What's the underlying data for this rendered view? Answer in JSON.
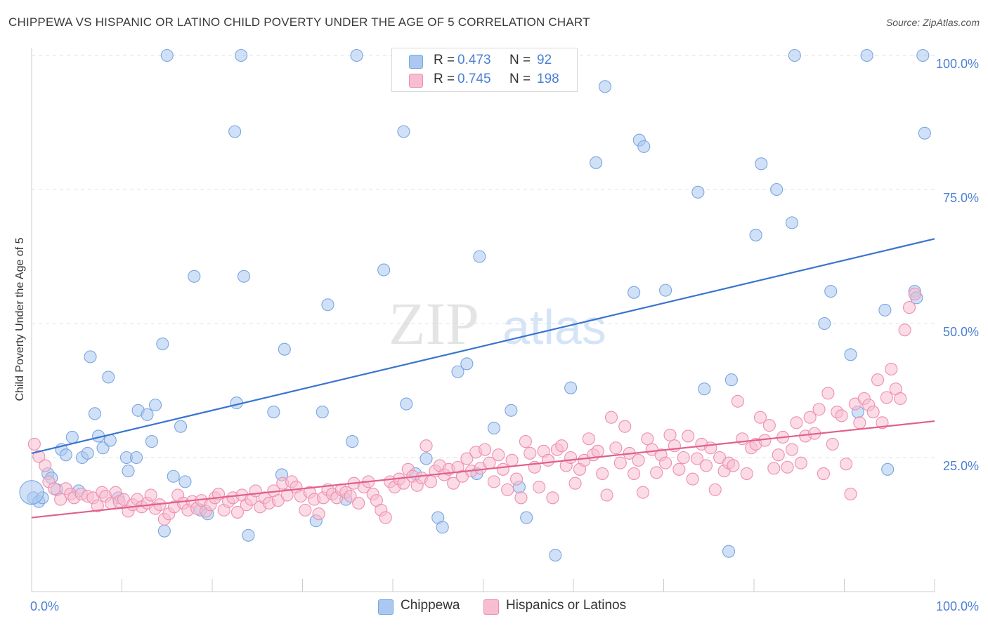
{
  "title": "CHIPPEWA VS HISPANIC OR LATINO CHILD POVERTY UNDER THE AGE OF 5 CORRELATION CHART",
  "source": "Source: ZipAtlas.com",
  "watermark": {
    "part1": "ZIP",
    "part2": "atlas"
  },
  "legend": {
    "rows": [
      {
        "r_label": "R =",
        "r_value": "0.473",
        "n_label": "N =",
        "n_value": "92",
        "color": "#aac8f0",
        "border": "#7aa6e0"
      },
      {
        "r_label": "R =",
        "r_value": "0.745",
        "n_label": "N =",
        "n_value": "198",
        "color": "#f7bdd0",
        "border": "#ee8fb0"
      }
    ]
  },
  "bottom_legend": [
    {
      "label": "Chippewa",
      "color": "#aac8f0",
      "border": "#7aa6e0"
    },
    {
      "label": "Hispanics or Latinos",
      "color": "#f7bdd0",
      "border": "#ee8fb0"
    }
  ],
  "chart_data": {
    "type": "scatter",
    "title": "CHIPPEWA VS HISPANIC OR LATINO CHILD POVERTY UNDER THE AGE OF 5 CORRELATION CHART",
    "xlabel": "",
    "ylabel": "Child Poverty Under the Age of 5",
    "xlim": [
      0,
      100
    ],
    "ylim": [
      0,
      100
    ],
    "x_ticks": [
      {
        "value": 0,
        "label": "0.0%"
      },
      {
        "value": 100,
        "label": "100.0%"
      }
    ],
    "y_ticks": [
      {
        "value": 25,
        "label": "25.0%"
      },
      {
        "value": 50,
        "label": "50.0%"
      },
      {
        "value": 75,
        "label": "75.0%"
      },
      {
        "value": 100,
        "label": "100.0%"
      }
    ],
    "grid": true,
    "series": [
      {
        "name": "Chippewa",
        "color": "#7aa6e0",
        "fill": "#aac8f0",
        "trend": {
          "x": [
            0,
            100
          ],
          "y": [
            25.8,
            65.8
          ],
          "color": "#3a74d0"
        },
        "points": [
          [
            0.2,
            17.5
          ],
          [
            0.8,
            16.8
          ],
          [
            1.2,
            17.5
          ],
          [
            1.8,
            22.0
          ],
          [
            2.2,
            21.2
          ],
          [
            2.8,
            19.0
          ],
          [
            3.3,
            26.5
          ],
          [
            3.8,
            25.5
          ],
          [
            4.5,
            28.8
          ],
          [
            5.2,
            18.8
          ],
          [
            5.6,
            25.0
          ],
          [
            6.2,
            25.8
          ],
          [
            6.5,
            43.8
          ],
          [
            7.0,
            33.2
          ],
          [
            7.4,
            29.0
          ],
          [
            7.9,
            26.8
          ],
          [
            8.5,
            40.0
          ],
          [
            8.7,
            28.2
          ],
          [
            9.6,
            17.5
          ],
          [
            10.5,
            25.0
          ],
          [
            10.7,
            22.5
          ],
          [
            11.6,
            25.0
          ],
          [
            11.8,
            33.8
          ],
          [
            12.8,
            33.0
          ],
          [
            13.3,
            28.0
          ],
          [
            13.7,
            34.8
          ],
          [
            14.5,
            46.2
          ],
          [
            14.7,
            11.3
          ],
          [
            15.0,
            100.0
          ],
          [
            15.7,
            21.5
          ],
          [
            16.5,
            30.8
          ],
          [
            17.0,
            20.5
          ],
          [
            18.0,
            58.8
          ],
          [
            18.7,
            15.2
          ],
          [
            19.5,
            14.5
          ],
          [
            22.5,
            85.8
          ],
          [
            22.7,
            35.2
          ],
          [
            23.2,
            100.0
          ],
          [
            23.5,
            58.8
          ],
          [
            24.0,
            10.5
          ],
          [
            26.8,
            33.5
          ],
          [
            27.7,
            21.8
          ],
          [
            28.0,
            45.2
          ],
          [
            31.5,
            13.2
          ],
          [
            32.2,
            33.5
          ],
          [
            32.8,
            53.5
          ],
          [
            34.8,
            17.2
          ],
          [
            35.5,
            28.0
          ],
          [
            36.0,
            100.0
          ],
          [
            39.0,
            60.0
          ],
          [
            41.2,
            85.8
          ],
          [
            41.5,
            35.0
          ],
          [
            42.5,
            22.0
          ],
          [
            43.7,
            24.8
          ],
          [
            45.0,
            13.8
          ],
          [
            45.5,
            12.0
          ],
          [
            47.2,
            41.0
          ],
          [
            48.2,
            42.5
          ],
          [
            49.3,
            22.0
          ],
          [
            49.6,
            62.5
          ],
          [
            51.2,
            30.5
          ],
          [
            53.1,
            33.8
          ],
          [
            54.0,
            19.5
          ],
          [
            54.8,
            13.8
          ],
          [
            58.0,
            6.8
          ],
          [
            59.7,
            38.0
          ],
          [
            62.5,
            80.0
          ],
          [
            63.5,
            94.2
          ],
          [
            66.7,
            55.8
          ],
          [
            67.3,
            84.2
          ],
          [
            67.8,
            83.0
          ],
          [
            70.2,
            56.2
          ],
          [
            73.8,
            74.5
          ],
          [
            74.5,
            37.8
          ],
          [
            77.2,
            7.5
          ],
          [
            77.5,
            39.5
          ],
          [
            80.2,
            66.5
          ],
          [
            80.8,
            79.8
          ],
          [
            82.5,
            75.0
          ],
          [
            84.2,
            68.8
          ],
          [
            84.5,
            100.0
          ],
          [
            87.8,
            50.0
          ],
          [
            88.5,
            56.0
          ],
          [
            90.7,
            44.2
          ],
          [
            91.5,
            33.5
          ],
          [
            92.5,
            100.0
          ],
          [
            94.5,
            52.5
          ],
          [
            94.8,
            22.8
          ],
          [
            97.8,
            56.0
          ],
          [
            98.0,
            54.8
          ],
          [
            98.7,
            100.0
          ],
          [
            98.9,
            85.5
          ]
        ]
      },
      {
        "name": "Hispanics or Latinos",
        "color": "#ee8fb0",
        "fill": "#f7bdd0",
        "trend": {
          "x": [
            0,
            100
          ],
          "y": [
            13.8,
            31.8
          ],
          "color": "#e0608a"
        },
        "points": [
          [
            0.3,
            27.5
          ],
          [
            0.8,
            25.2
          ],
          [
            1.5,
            23.5
          ],
          [
            1.9,
            20.5
          ],
          [
            2.5,
            19.2
          ],
          [
            3.2,
            17.2
          ],
          [
            3.8,
            19.2
          ],
          [
            4.3,
            18.2
          ],
          [
            4.7,
            17.5
          ],
          [
            5.5,
            18.2
          ],
          [
            6.2,
            17.8
          ],
          [
            6.8,
            17.5
          ],
          [
            7.3,
            16.0
          ],
          [
            7.8,
            18.5
          ],
          [
            8.2,
            17.8
          ],
          [
            8.8,
            16.5
          ],
          [
            9.3,
            18.5
          ],
          [
            9.7,
            16.8
          ],
          [
            10.2,
            17.2
          ],
          [
            10.7,
            15.0
          ],
          [
            11.2,
            16.2
          ],
          [
            11.7,
            17.2
          ],
          [
            12.2,
            15.8
          ],
          [
            12.8,
            16.5
          ],
          [
            13.2,
            18.0
          ],
          [
            13.7,
            15.5
          ],
          [
            14.2,
            16.2
          ],
          [
            14.7,
            13.5
          ],
          [
            15.2,
            14.5
          ],
          [
            15.8,
            15.8
          ],
          [
            16.2,
            18.0
          ],
          [
            16.8,
            16.5
          ],
          [
            17.3,
            15.2
          ],
          [
            17.8,
            16.8
          ],
          [
            18.3,
            15.5
          ],
          [
            18.8,
            17.0
          ],
          [
            19.3,
            15.0
          ],
          [
            19.8,
            16.2
          ],
          [
            20.3,
            17.5
          ],
          [
            20.7,
            18.2
          ],
          [
            21.3,
            15.2
          ],
          [
            21.8,
            16.8
          ],
          [
            22.3,
            17.5
          ],
          [
            22.8,
            14.8
          ],
          [
            23.3,
            18.0
          ],
          [
            23.8,
            16.2
          ],
          [
            24.3,
            17.2
          ],
          [
            24.8,
            18.8
          ],
          [
            25.3,
            15.8
          ],
          [
            25.8,
            17.5
          ],
          [
            26.3,
            16.5
          ],
          [
            26.8,
            18.8
          ],
          [
            27.3,
            17.0
          ],
          [
            27.8,
            20.2
          ],
          [
            28.3,
            18.0
          ],
          [
            28.8,
            20.5
          ],
          [
            29.3,
            19.5
          ],
          [
            29.8,
            17.8
          ],
          [
            30.3,
            15.2
          ],
          [
            30.8,
            18.5
          ],
          [
            31.3,
            17.2
          ],
          [
            31.8,
            14.5
          ],
          [
            32.3,
            17.5
          ],
          [
            32.8,
            19.0
          ],
          [
            33.3,
            18.2
          ],
          [
            33.8,
            17.5
          ],
          [
            34.3,
            19.0
          ],
          [
            34.8,
            18.5
          ],
          [
            35.3,
            17.8
          ],
          [
            35.7,
            20.2
          ],
          [
            36.2,
            16.5
          ],
          [
            36.8,
            19.5
          ],
          [
            37.3,
            20.5
          ],
          [
            37.8,
            18.2
          ],
          [
            38.2,
            17.0
          ],
          [
            38.7,
            15.2
          ],
          [
            39.2,
            13.8
          ],
          [
            39.7,
            20.5
          ],
          [
            40.2,
            19.5
          ],
          [
            40.7,
            21.0
          ],
          [
            41.2,
            20.2
          ],
          [
            41.7,
            22.8
          ],
          [
            42.2,
            21.5
          ],
          [
            42.7,
            19.8
          ],
          [
            43.2,
            21.2
          ],
          [
            43.7,
            27.2
          ],
          [
            44.2,
            20.5
          ],
          [
            44.7,
            22.5
          ],
          [
            45.2,
            23.5
          ],
          [
            45.7,
            21.8
          ],
          [
            46.2,
            22.8
          ],
          [
            46.7,
            20.2
          ],
          [
            47.2,
            23.2
          ],
          [
            47.7,
            21.5
          ],
          [
            48.2,
            24.8
          ],
          [
            48.7,
            22.5
          ],
          [
            49.2,
            26.0
          ],
          [
            49.7,
            23.0
          ],
          [
            50.2,
            26.5
          ],
          [
            50.7,
            24.0
          ],
          [
            51.2,
            20.5
          ],
          [
            51.7,
            25.5
          ],
          [
            52.2,
            22.8
          ],
          [
            52.7,
            19.0
          ],
          [
            53.2,
            24.5
          ],
          [
            53.7,
            21.0
          ],
          [
            54.2,
            17.5
          ],
          [
            54.7,
            28.0
          ],
          [
            55.2,
            25.8
          ],
          [
            55.7,
            23.2
          ],
          [
            56.2,
            19.5
          ],
          [
            56.7,
            26.2
          ],
          [
            57.2,
            24.5
          ],
          [
            57.7,
            17.5
          ],
          [
            58.2,
            26.5
          ],
          [
            58.7,
            27.2
          ],
          [
            59.2,
            23.5
          ],
          [
            59.7,
            25.0
          ],
          [
            60.2,
            20.2
          ],
          [
            60.7,
            22.8
          ],
          [
            61.2,
            24.5
          ],
          [
            61.7,
            28.5
          ],
          [
            62.2,
            25.5
          ],
          [
            62.7,
            26.2
          ],
          [
            63.2,
            22.0
          ],
          [
            63.7,
            18.0
          ],
          [
            64.2,
            32.5
          ],
          [
            64.7,
            26.8
          ],
          [
            65.2,
            24.0
          ],
          [
            65.7,
            30.8
          ],
          [
            66.2,
            25.8
          ],
          [
            66.7,
            22.0
          ],
          [
            67.2,
            24.5
          ],
          [
            67.7,
            18.5
          ],
          [
            68.2,
            28.5
          ],
          [
            68.7,
            26.5
          ],
          [
            69.2,
            22.2
          ],
          [
            69.7,
            25.5
          ],
          [
            70.2,
            24.0
          ],
          [
            70.7,
            29.2
          ],
          [
            71.2,
            27.2
          ],
          [
            71.7,
            22.8
          ],
          [
            72.2,
            25.0
          ],
          [
            72.7,
            29.0
          ],
          [
            73.2,
            21.0
          ],
          [
            73.7,
            24.8
          ],
          [
            74.2,
            27.5
          ],
          [
            74.7,
            23.5
          ],
          [
            75.2,
            26.8
          ],
          [
            75.7,
            19.0
          ],
          [
            76.2,
            25.0
          ],
          [
            76.7,
            22.5
          ],
          [
            77.2,
            24.0
          ],
          [
            77.7,
            23.5
          ],
          [
            78.2,
            35.5
          ],
          [
            78.7,
            28.5
          ],
          [
            79.2,
            22.0
          ],
          [
            79.7,
            26.8
          ],
          [
            80.2,
            27.5
          ],
          [
            80.7,
            32.5
          ],
          [
            81.2,
            28.2
          ],
          [
            81.7,
            31.0
          ],
          [
            82.2,
            23.0
          ],
          [
            82.7,
            25.5
          ],
          [
            83.2,
            28.8
          ],
          [
            83.7,
            23.2
          ],
          [
            84.2,
            26.5
          ],
          [
            84.7,
            31.5
          ],
          [
            85.2,
            24.0
          ],
          [
            85.7,
            29.0
          ],
          [
            86.2,
            32.5
          ],
          [
            86.7,
            29.5
          ],
          [
            87.2,
            34.0
          ],
          [
            87.7,
            22.0
          ],
          [
            88.2,
            37.0
          ],
          [
            88.7,
            27.5
          ],
          [
            89.2,
            33.5
          ],
          [
            89.7,
            32.8
          ],
          [
            90.2,
            23.8
          ],
          [
            90.7,
            18.2
          ],
          [
            91.2,
            35.0
          ],
          [
            91.7,
            31.5
          ],
          [
            92.2,
            36.0
          ],
          [
            92.7,
            34.8
          ],
          [
            93.2,
            33.5
          ],
          [
            93.7,
            39.5
          ],
          [
            94.2,
            31.5
          ],
          [
            94.7,
            36.2
          ],
          [
            95.2,
            41.5
          ],
          [
            95.7,
            37.8
          ],
          [
            96.2,
            36.0
          ],
          [
            96.7,
            48.8
          ],
          [
            97.2,
            53.0
          ],
          [
            97.8,
            55.5
          ]
        ]
      }
    ]
  }
}
